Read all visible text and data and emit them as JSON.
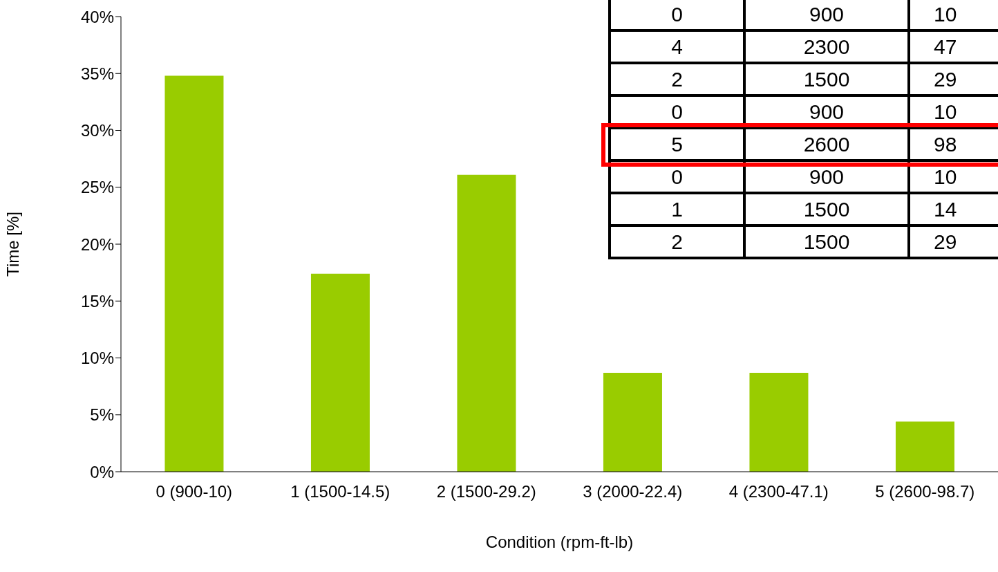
{
  "chart_data": {
    "type": "bar",
    "xlabel": "Condition (rpm-ft-lb)",
    "ylabel": "Time [%]",
    "categories": [
      "0 (900-10)",
      "1 (1500-14.5)",
      "2 (1500-29.2)",
      "3 (2000-22.4)",
      "4 (2300-47.1)",
      "5 (2600-98.7)"
    ],
    "values": [
      34.8,
      17.4,
      26.1,
      8.7,
      8.7,
      4.4
    ],
    "color": "#99cc00",
    "ylim": [
      0,
      40
    ],
    "yticks": [
      {
        "value": 0,
        "label": "0%"
      },
      {
        "value": 5,
        "label": "5%"
      },
      {
        "value": 10,
        "label": "10%"
      },
      {
        "value": 15,
        "label": "15%"
      },
      {
        "value": 20,
        "label": "20%"
      },
      {
        "value": 25,
        "label": "25%"
      },
      {
        "value": 30,
        "label": "30%"
      },
      {
        "value": 35,
        "label": "35%"
      },
      {
        "value": 40,
        "label": "40%"
      }
    ],
    "grid": false,
    "legend": false,
    "annotations": [
      "0",
      "900",
      "10",
      "4",
      "2300",
      "47",
      "2",
      "1500",
      "29",
      "0",
      "900",
      "10",
      "5",
      "2600",
      "98",
      "0",
      "900",
      "10",
      "1",
      "1500",
      "14",
      "2",
      "1500",
      "29"
    ]
  }
}
